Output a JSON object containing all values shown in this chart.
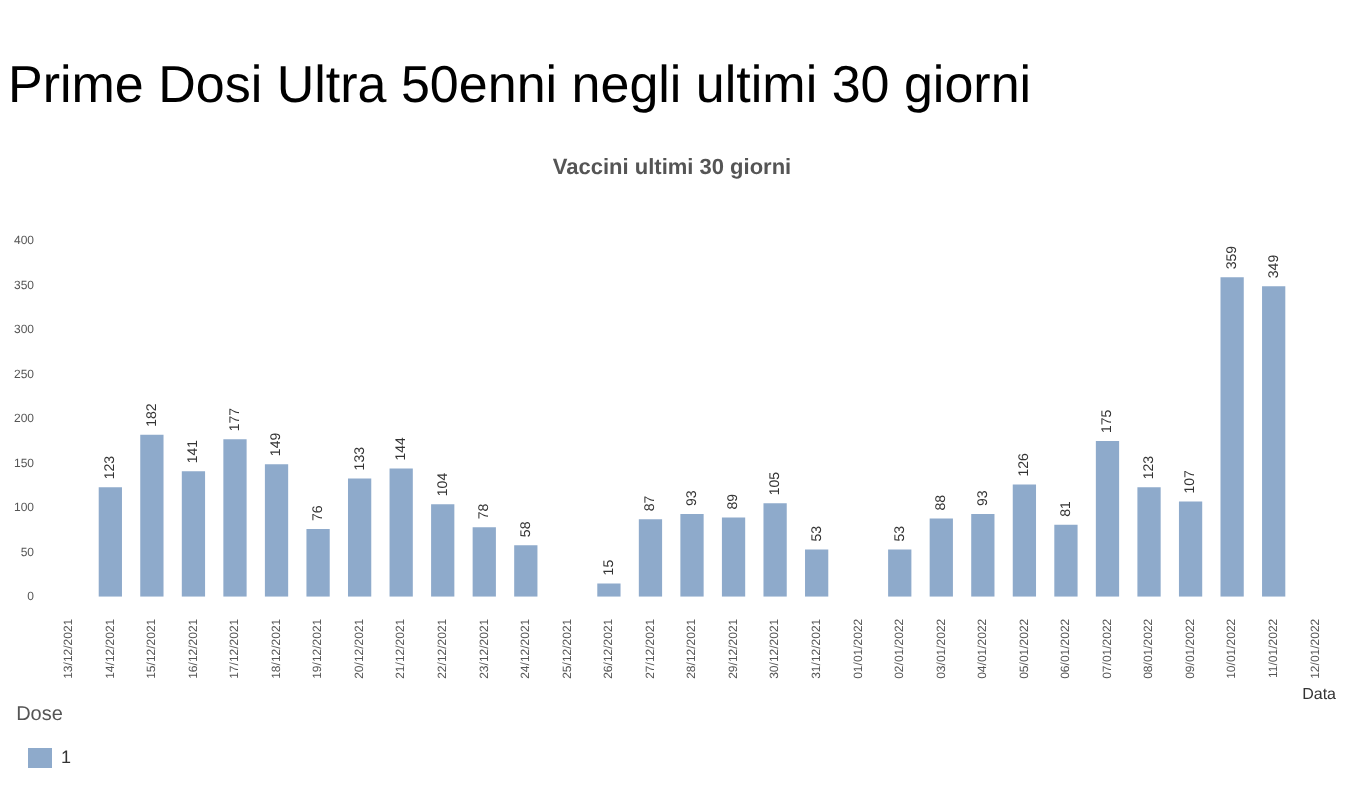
{
  "chart_data": {
    "type": "bar",
    "title": "Prime Dosi Ultra 50enni negli ultimi 30 giorni",
    "subtitle": "Vaccini ultimi 30 giorni",
    "xlabel": "Data",
    "legend_title": "Dose",
    "categories": [
      "13/12/2021",
      "14/12/2021",
      "15/12/2021",
      "16/12/2021",
      "17/12/2021",
      "18/12/2021",
      "19/12/2021",
      "20/12/2021",
      "21/12/2021",
      "22/12/2021",
      "23/12/2021",
      "24/12/2021",
      "25/12/2021",
      "26/12/2021",
      "27/12/2021",
      "28/12/2021",
      "29/12/2021",
      "30/12/2021",
      "31/12/2021",
      "01/01/2022",
      "02/01/2022",
      "03/01/2022",
      "04/01/2022",
      "05/01/2022",
      "06/01/2022",
      "07/01/2022",
      "08/01/2022",
      "09/01/2022",
      "10/01/2022",
      "11/01/2022",
      "12/01/2022"
    ],
    "series": [
      {
        "name": "1",
        "color": "#8eaacb",
        "values": [
          null,
          123,
          182,
          141,
          177,
          149,
          76,
          133,
          144,
          104,
          78,
          58,
          null,
          15,
          87,
          93,
          89,
          105,
          53,
          null,
          53,
          88,
          93,
          126,
          81,
          175,
          123,
          107,
          359,
          349,
          null
        ]
      }
    ],
    "ylim": [
      0,
      400
    ],
    "yticks": [
      0,
      50,
      100,
      150,
      200,
      250,
      300,
      350,
      400
    ],
    "grid": false,
    "legend": "bottom left",
    "data_labels": true
  }
}
